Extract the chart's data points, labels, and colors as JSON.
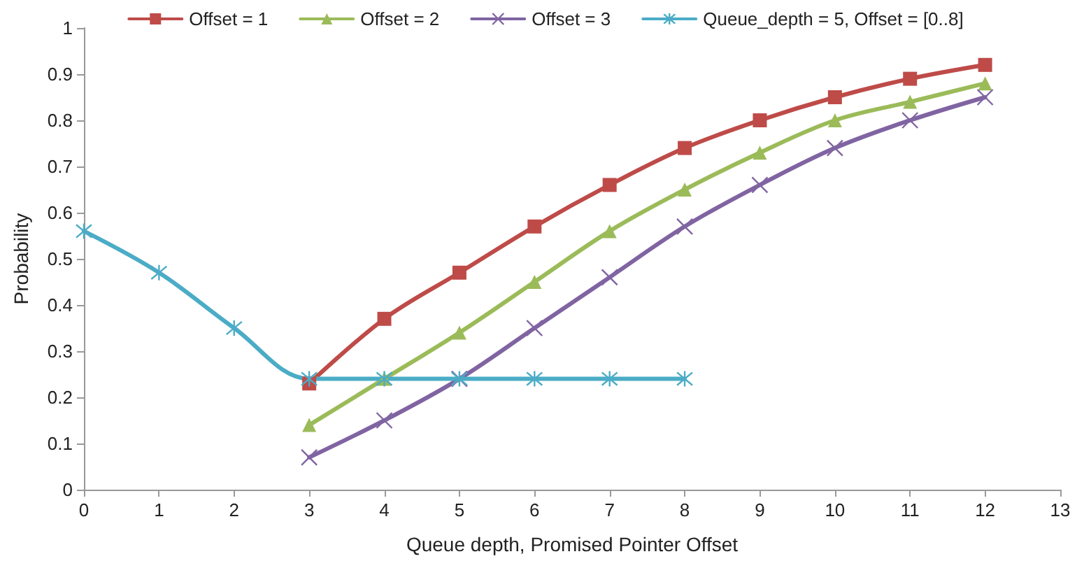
{
  "chart_data": {
    "type": "line",
    "xlabel": "Queue depth, Promised Pointer Offset",
    "ylabel": "Probability",
    "xlim": [
      0,
      13
    ],
    "xticks": [
      0,
      1,
      2,
      3,
      4,
      5,
      6,
      7,
      8,
      9,
      10,
      11,
      12,
      13
    ],
    "ylim": [
      0,
      1
    ],
    "yticks": [
      0,
      0.1,
      0.2,
      0.3,
      0.4,
      0.5,
      0.6,
      0.7,
      0.8,
      0.9,
      1
    ],
    "grid": false,
    "legend": "top",
    "line_style": "solid",
    "series": [
      {
        "name": "Offset = 1",
        "color": "#be4b48",
        "marker": "square",
        "x": [
          3,
          4,
          5,
          6,
          7,
          8,
          9,
          10,
          11,
          12
        ],
        "values": [
          0.23,
          0.37,
          0.47,
          0.57,
          0.66,
          0.74,
          0.8,
          0.85,
          0.89,
          0.92
        ]
      },
      {
        "name": "Offset = 2",
        "color": "#9bbb59",
        "marker": "triangle",
        "x": [
          3,
          4,
          5,
          6,
          7,
          8,
          9,
          10,
          11,
          12
        ],
        "values": [
          0.14,
          0.24,
          0.34,
          0.45,
          0.56,
          0.65,
          0.73,
          0.8,
          0.84,
          0.88
        ]
      },
      {
        "name": "Offset = 3",
        "color": "#8064a2",
        "marker": "cross",
        "x": [
          3,
          4,
          5,
          6,
          7,
          8,
          9,
          10,
          11,
          12
        ],
        "values": [
          0.07,
          0.15,
          0.24,
          0.35,
          0.46,
          0.57,
          0.66,
          0.74,
          0.8,
          0.85
        ]
      },
      {
        "name": "Queue_depth = 5, Offset = [0..8]",
        "color": "#4bacc6",
        "marker": "cross",
        "x": [
          0,
          1,
          2,
          3,
          4,
          5,
          6,
          7,
          8
        ],
        "values": [
          0.56,
          0.47,
          0.35,
          0.24,
          0.24,
          0.24,
          0.24,
          0.24,
          0.24
        ]
      }
    ]
  }
}
